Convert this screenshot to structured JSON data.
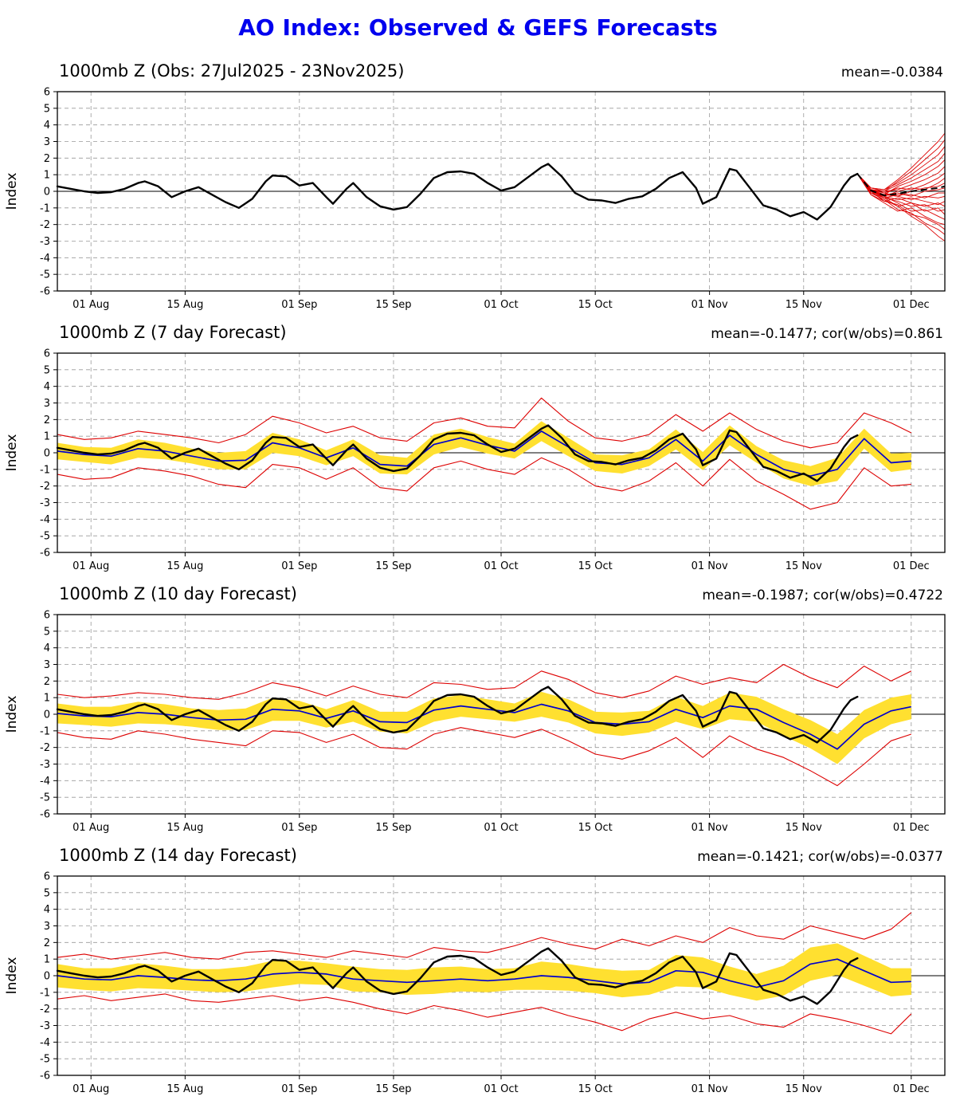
{
  "title": "AO Index: Observed & GEFS Forecasts",
  "colors": {
    "title": "#0000ee",
    "observed": "#000000",
    "ensemble_member": "#dd0000",
    "forecast_mean": "#0000cc",
    "spread_band": "#ffe030",
    "envelope": "#dd0000",
    "grid": "#999999"
  },
  "chart_data": {
    "type": "line",
    "x_axis": {
      "start_date": "27Jul2025",
      "domain_days": [
        0,
        132
      ],
      "tick_days": [
        5,
        19,
        36,
        50,
        66,
        80,
        97,
        111,
        127
      ],
      "tick_labels": [
        "01 Aug",
        "15 Aug",
        "01 Sep",
        "15 Sep",
        "01 Oct",
        "15 Oct",
        "01 Nov",
        "15 Nov",
        "01 Dec"
      ]
    },
    "y_axis": {
      "label": "Index",
      "min": -6,
      "max": 6,
      "tick_step": 1
    },
    "observed_days_values": [
      [
        0,
        0.3
      ],
      [
        2,
        0.15
      ],
      [
        4,
        0.0
      ],
      [
        6,
        -0.1
      ],
      [
        8,
        -0.05
      ],
      [
        10,
        0.15
      ],
      [
        12,
        0.5
      ],
      [
        13,
        0.6
      ],
      [
        15,
        0.3
      ],
      [
        17,
        -0.35
      ],
      [
        19,
        0.0
      ],
      [
        21,
        0.25
      ],
      [
        23,
        -0.2
      ],
      [
        25,
        -0.65
      ],
      [
        27,
        -1.0
      ],
      [
        29,
        -0.45
      ],
      [
        31,
        0.6
      ],
      [
        32,
        0.95
      ],
      [
        34,
        0.9
      ],
      [
        36,
        0.35
      ],
      [
        38,
        0.5
      ],
      [
        40,
        -0.35
      ],
      [
        41,
        -0.75
      ],
      [
        43,
        0.15
      ],
      [
        44,
        0.5
      ],
      [
        46,
        -0.35
      ],
      [
        48,
        -0.9
      ],
      [
        50,
        -1.1
      ],
      [
        52,
        -0.95
      ],
      [
        54,
        -0.15
      ],
      [
        56,
        0.8
      ],
      [
        58,
        1.15
      ],
      [
        60,
        1.2
      ],
      [
        62,
        1.05
      ],
      [
        64,
        0.5
      ],
      [
        66,
        0.05
      ],
      [
        68,
        0.25
      ],
      [
        70,
        0.85
      ],
      [
        72,
        1.45
      ],
      [
        73,
        1.65
      ],
      [
        75,
        0.9
      ],
      [
        77,
        -0.1
      ],
      [
        79,
        -0.5
      ],
      [
        81,
        -0.55
      ],
      [
        83,
        -0.7
      ],
      [
        85,
        -0.45
      ],
      [
        87,
        -0.3
      ],
      [
        89,
        0.15
      ],
      [
        91,
        0.8
      ],
      [
        93,
        1.15
      ],
      [
        95,
        0.2
      ],
      [
        96,
        -0.75
      ],
      [
        98,
        -0.35
      ],
      [
        100,
        1.35
      ],
      [
        101,
        1.25
      ],
      [
        103,
        0.2
      ],
      [
        105,
        -0.85
      ],
      [
        107,
        -1.1
      ],
      [
        109,
        -1.5
      ],
      [
        111,
        -1.25
      ],
      [
        113,
        -1.7
      ],
      [
        115,
        -0.95
      ],
      [
        117,
        0.35
      ],
      [
        118,
        0.85
      ],
      [
        119,
        1.05
      ]
    ],
    "panels": [
      {
        "title": "1000mb Z (Obs: 27Jul2025 - 23Nov2025)",
        "stats": "mean=-0.0384",
        "kind": "observed_ensemble",
        "member_days": [
          119,
          121,
          123,
          125,
          127,
          129,
          131,
          132
        ],
        "ensemble_members": [
          [
            1.05,
            0.1,
            -0.4,
            -0.9,
            -1.5,
            -2.0,
            -2.7,
            -3.0
          ],
          [
            1.05,
            -0.1,
            -0.5,
            -1.1,
            -1.3,
            -1.9,
            -2.3,
            -2.6
          ],
          [
            1.05,
            0.0,
            -0.6,
            -0.8,
            -1.4,
            -1.6,
            -2.0,
            -2.3
          ],
          [
            1.05,
            -0.2,
            -0.7,
            -1.2,
            -1.0,
            -1.5,
            -1.9,
            -2.0
          ],
          [
            1.05,
            0.1,
            -0.3,
            -0.7,
            -1.2,
            -1.1,
            -1.5,
            -1.7
          ],
          [
            1.05,
            -0.1,
            -0.5,
            -0.9,
            -0.7,
            -1.2,
            -1.0,
            -1.4
          ],
          [
            1.05,
            0.0,
            -0.4,
            -0.6,
            -0.9,
            -0.8,
            -1.2,
            -1.1
          ],
          [
            1.05,
            -0.2,
            -0.6,
            -0.4,
            -0.7,
            -0.9,
            -0.7,
            -0.9
          ],
          [
            1.05,
            0.0,
            -0.3,
            -0.5,
            -0.4,
            -0.6,
            -0.8,
            -0.6
          ],
          [
            1.05,
            0.1,
            -0.2,
            -0.3,
            -0.5,
            -0.3,
            -0.4,
            -0.3
          ],
          [
            1.05,
            -0.1,
            -0.4,
            -0.2,
            -0.2,
            -0.4,
            -0.1,
            -0.1
          ],
          [
            1.05,
            0.0,
            -0.2,
            -0.1,
            -0.3,
            0.0,
            0.1,
            0.2
          ],
          [
            1.05,
            0.1,
            -0.1,
            -0.3,
            0.0,
            0.2,
            0.3,
            0.5
          ],
          [
            1.05,
            0.0,
            -0.3,
            0.0,
            0.2,
            0.1,
            0.5,
            0.8
          ],
          [
            1.05,
            0.1,
            -0.1,
            0.2,
            0.1,
            0.4,
            0.8,
            1.1
          ],
          [
            1.05,
            0.2,
            0.0,
            0.1,
            0.4,
            0.7,
            1.1,
            1.5
          ],
          [
            1.05,
            0.0,
            -0.2,
            0.3,
            0.6,
            1.0,
            1.5,
            1.9
          ],
          [
            1.05,
            0.1,
            0.0,
            0.4,
            0.8,
            1.3,
            1.8,
            2.3
          ],
          [
            1.05,
            0.2,
            0.1,
            0.5,
            1.0,
            1.6,
            2.2,
            2.7
          ],
          [
            1.05,
            0.1,
            0.0,
            0.6,
            1.2,
            1.9,
            2.6,
            3.1
          ],
          [
            1.05,
            0.2,
            0.1,
            0.7,
            1.4,
            2.2,
            3.0,
            3.5
          ]
        ],
        "ensemble_mean": [
          1.05,
          0.05,
          -0.25,
          -0.15,
          0.0,
          0.1,
          0.2,
          0.3
        ]
      },
      {
        "title": "1000mb Z (7 day Forecast)",
        "stats": "mean=-0.1477; cor(w/obs)=0.861",
        "kind": "forecast",
        "days": [
          0,
          4,
          8,
          12,
          16,
          20,
          24,
          28,
          32,
          36,
          40,
          44,
          48,
          52,
          56,
          60,
          64,
          68,
          72,
          76,
          80,
          84,
          88,
          92,
          96,
          100,
          104,
          108,
          112,
          116,
          120,
          124,
          127
        ],
        "mean": [
          0.1,
          -0.1,
          -0.2,
          0.25,
          0.1,
          -0.2,
          -0.5,
          -0.45,
          0.6,
          0.3,
          -0.3,
          0.3,
          -0.7,
          -0.8,
          0.5,
          0.9,
          0.45,
          0.1,
          1.3,
          0.35,
          -0.6,
          -0.7,
          -0.3,
          0.8,
          -0.5,
          1.05,
          -0.1,
          -1.0,
          -1.4,
          -1.0,
          0.85,
          -0.6,
          -0.5
        ],
        "spread": [
          0.5,
          0.45,
          0.5,
          0.55,
          0.5,
          0.45,
          0.5,
          0.55,
          0.6,
          0.5,
          0.45,
          0.5,
          0.55,
          0.5,
          0.6,
          0.55,
          0.5,
          0.45,
          0.6,
          0.55,
          0.5,
          0.55,
          0.5,
          0.6,
          0.55,
          0.6,
          0.5,
          0.55,
          0.6,
          0.7,
          0.6,
          0.55,
          0.5
        ],
        "env_hi": [
          1.1,
          0.8,
          0.9,
          1.3,
          1.1,
          0.9,
          0.6,
          1.1,
          2.2,
          1.8,
          1.2,
          1.6,
          0.9,
          0.7,
          1.8,
          2.1,
          1.6,
          1.5,
          3.3,
          1.9,
          0.9,
          0.7,
          1.1,
          2.3,
          1.3,
          2.4,
          1.4,
          0.7,
          0.3,
          0.6,
          2.4,
          1.8,
          1.2
        ],
        "env_lo": [
          -1.3,
          -1.6,
          -1.5,
          -0.9,
          -1.1,
          -1.4,
          -1.9,
          -2.1,
          -0.7,
          -0.9,
          -1.6,
          -0.9,
          -2.1,
          -2.3,
          -0.9,
          -0.5,
          -1.0,
          -1.3,
          -0.3,
          -1.0,
          -2.0,
          -2.3,
          -1.7,
          -0.6,
          -2.0,
          -0.4,
          -1.7,
          -2.5,
          -3.4,
          -3.0,
          -0.9,
          -2.0,
          -1.9
        ]
      },
      {
        "title": "1000mb Z (10 day Forecast)",
        "stats": "mean=-0.1987; cor(w/obs)=0.4722",
        "kind": "forecast",
        "days": [
          0,
          4,
          8,
          12,
          16,
          20,
          24,
          28,
          32,
          36,
          40,
          44,
          48,
          52,
          56,
          60,
          64,
          68,
          72,
          76,
          80,
          84,
          88,
          92,
          96,
          100,
          104,
          108,
          112,
          116,
          120,
          124,
          127
        ],
        "mean": [
          0.05,
          -0.1,
          -0.15,
          0.1,
          0.0,
          -0.2,
          -0.35,
          -0.3,
          0.3,
          0.2,
          -0.25,
          0.2,
          -0.45,
          -0.5,
          0.25,
          0.5,
          0.3,
          0.1,
          0.6,
          0.2,
          -0.5,
          -0.6,
          -0.45,
          0.3,
          -0.2,
          0.5,
          0.3,
          -0.5,
          -1.2,
          -2.1,
          -0.6,
          0.2,
          0.45
        ],
        "spread": [
          0.6,
          0.55,
          0.6,
          0.65,
          0.6,
          0.55,
          0.6,
          0.65,
          0.7,
          0.6,
          0.55,
          0.65,
          0.6,
          0.65,
          0.7,
          0.65,
          0.6,
          0.55,
          0.75,
          0.7,
          0.65,
          0.7,
          0.65,
          0.75,
          0.7,
          0.8,
          0.75,
          0.8,
          0.85,
          0.9,
          0.85,
          0.8,
          0.75
        ],
        "env_hi": [
          1.2,
          1.0,
          1.1,
          1.3,
          1.2,
          1.0,
          0.9,
          1.3,
          1.9,
          1.6,
          1.1,
          1.7,
          1.2,
          1.0,
          1.9,
          1.8,
          1.5,
          1.6,
          2.6,
          2.1,
          1.3,
          1.0,
          1.4,
          2.3,
          1.8,
          2.2,
          1.9,
          3.0,
          2.2,
          1.6,
          2.9,
          2.0,
          2.6
        ],
        "env_lo": [
          -1.1,
          -1.4,
          -1.5,
          -1.0,
          -1.2,
          -1.5,
          -1.7,
          -1.9,
          -1.0,
          -1.1,
          -1.7,
          -1.2,
          -2.0,
          -2.1,
          -1.2,
          -0.8,
          -1.1,
          -1.4,
          -0.9,
          -1.6,
          -2.4,
          -2.7,
          -2.2,
          -1.4,
          -2.6,
          -1.3,
          -2.1,
          -2.6,
          -3.4,
          -4.3,
          -3.0,
          -1.6,
          -1.2
        ]
      },
      {
        "title": "1000mb Z (14 day Forecast)",
        "stats": "mean=-0.1421; cor(w/obs)=-0.0377",
        "kind": "forecast",
        "days": [
          0,
          4,
          8,
          12,
          16,
          20,
          24,
          28,
          32,
          36,
          40,
          44,
          48,
          52,
          56,
          60,
          64,
          68,
          72,
          76,
          80,
          84,
          88,
          92,
          96,
          100,
          104,
          108,
          112,
          116,
          120,
          124,
          127
        ],
        "mean": [
          0.0,
          -0.2,
          -0.25,
          0.0,
          -0.1,
          -0.25,
          -0.3,
          -0.2,
          0.1,
          0.2,
          0.1,
          -0.2,
          -0.3,
          -0.4,
          -0.3,
          -0.2,
          -0.3,
          -0.2,
          0.0,
          -0.1,
          -0.3,
          -0.5,
          -0.4,
          0.3,
          0.2,
          -0.3,
          -0.7,
          -0.3,
          0.7,
          1.0,
          0.3,
          -0.4,
          -0.35
        ],
        "spread": [
          0.7,
          0.65,
          0.7,
          0.75,
          0.7,
          0.65,
          0.7,
          0.75,
          0.8,
          0.7,
          0.65,
          0.75,
          0.7,
          0.75,
          0.8,
          0.75,
          0.7,
          0.65,
          0.85,
          0.8,
          0.75,
          0.8,
          0.75,
          0.95,
          0.9,
          0.85,
          0.8,
          0.9,
          1.0,
          0.95,
          0.9,
          0.85,
          0.8
        ],
        "env_hi": [
          1.1,
          1.3,
          1.0,
          1.2,
          1.4,
          1.1,
          1.0,
          1.4,
          1.5,
          1.3,
          1.1,
          1.5,
          1.3,
          1.1,
          1.7,
          1.5,
          1.4,
          1.8,
          2.3,
          1.9,
          1.6,
          2.2,
          1.8,
          2.4,
          2.0,
          2.9,
          2.4,
          2.2,
          3.0,
          2.6,
          2.2,
          2.8,
          3.8
        ],
        "env_lo": [
          -1.4,
          -1.2,
          -1.5,
          -1.3,
          -1.1,
          -1.5,
          -1.6,
          -1.4,
          -1.2,
          -1.5,
          -1.3,
          -1.6,
          -2.0,
          -2.3,
          -1.8,
          -2.1,
          -2.5,
          -2.2,
          -1.9,
          -2.4,
          -2.8,
          -3.3,
          -2.6,
          -2.2,
          -2.6,
          -2.4,
          -2.9,
          -3.1,
          -2.3,
          -2.6,
          -3.0,
          -3.5,
          -2.3
        ]
      }
    ]
  }
}
